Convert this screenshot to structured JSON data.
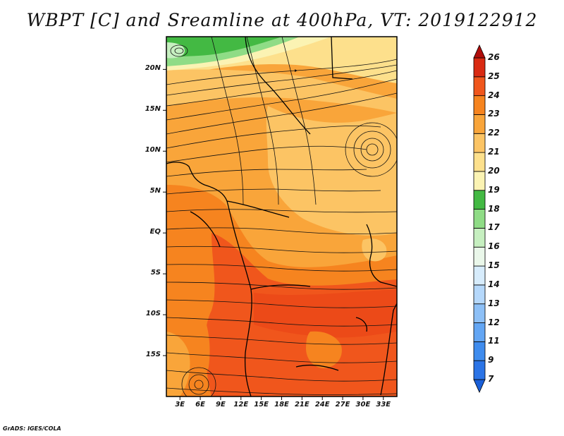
{
  "title": "WBPT [C] and Sreamline at 400hPa, VT: 2019122912",
  "credit": "GrADS: IGES/COLA",
  "map": {
    "lon_range": [
      1,
      35
    ],
    "lat_range": [
      -20,
      24
    ],
    "lat_ticks": [
      "20N",
      "15N",
      "10N",
      "5N",
      "EQ",
      "5S",
      "10S",
      "15S"
    ],
    "lon_ticks": [
      "3E",
      "6E",
      "9E",
      "12E",
      "15E",
      "18E",
      "21E",
      "24E",
      "27E",
      "30E",
      "33E"
    ]
  },
  "colorbar": {
    "labels": [
      "7",
      "9",
      "11",
      "12",
      "13",
      "14",
      "15",
      "16",
      "17",
      "18",
      "19",
      "20",
      "21",
      "22",
      "23",
      "24",
      "25",
      "26"
    ],
    "colors": [
      "#1a5fd8",
      "#2b74e6",
      "#3f8cee",
      "#63a6f4",
      "#8dc0f7",
      "#b5d8fb",
      "#d7ecfc",
      "#eaf7ea",
      "#c6efc0",
      "#8fdc86",
      "#43b943",
      "#fbf3b3",
      "#fde08c",
      "#fcc464",
      "#f9a53a",
      "#f6841f",
      "#f0561c",
      "#d92a12",
      "#b00d0b"
    ]
  }
}
